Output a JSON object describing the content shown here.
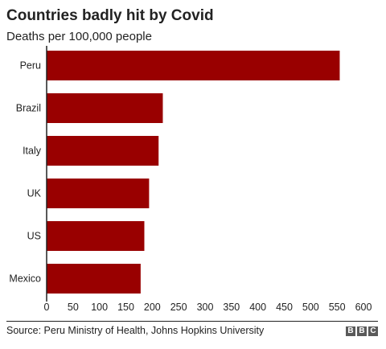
{
  "header": {
    "title": "Countries badly hit by Covid",
    "subtitle": "Deaths per 100,000 people"
  },
  "footer": {
    "source": "Source: Peru Ministry of Health, Johns Hopkins University",
    "logo_letters": [
      "B",
      "B",
      "C"
    ]
  },
  "chart_data": {
    "type": "bar",
    "orientation": "horizontal",
    "title": "Countries badly hit by Covid",
    "subtitle": "Deaths per 100,000 people",
    "categories": [
      "Peru",
      "Brazil",
      "Italy",
      "UK",
      "US",
      "Mexico"
    ],
    "values": [
      555,
      220,
      212,
      194,
      185,
      178
    ],
    "xlim": [
      0,
      600
    ],
    "xticks": [
      0,
      50,
      100,
      150,
      200,
      250,
      300,
      350,
      400,
      450,
      500,
      550,
      600
    ],
    "grid": false,
    "bar_color": "#990000"
  }
}
